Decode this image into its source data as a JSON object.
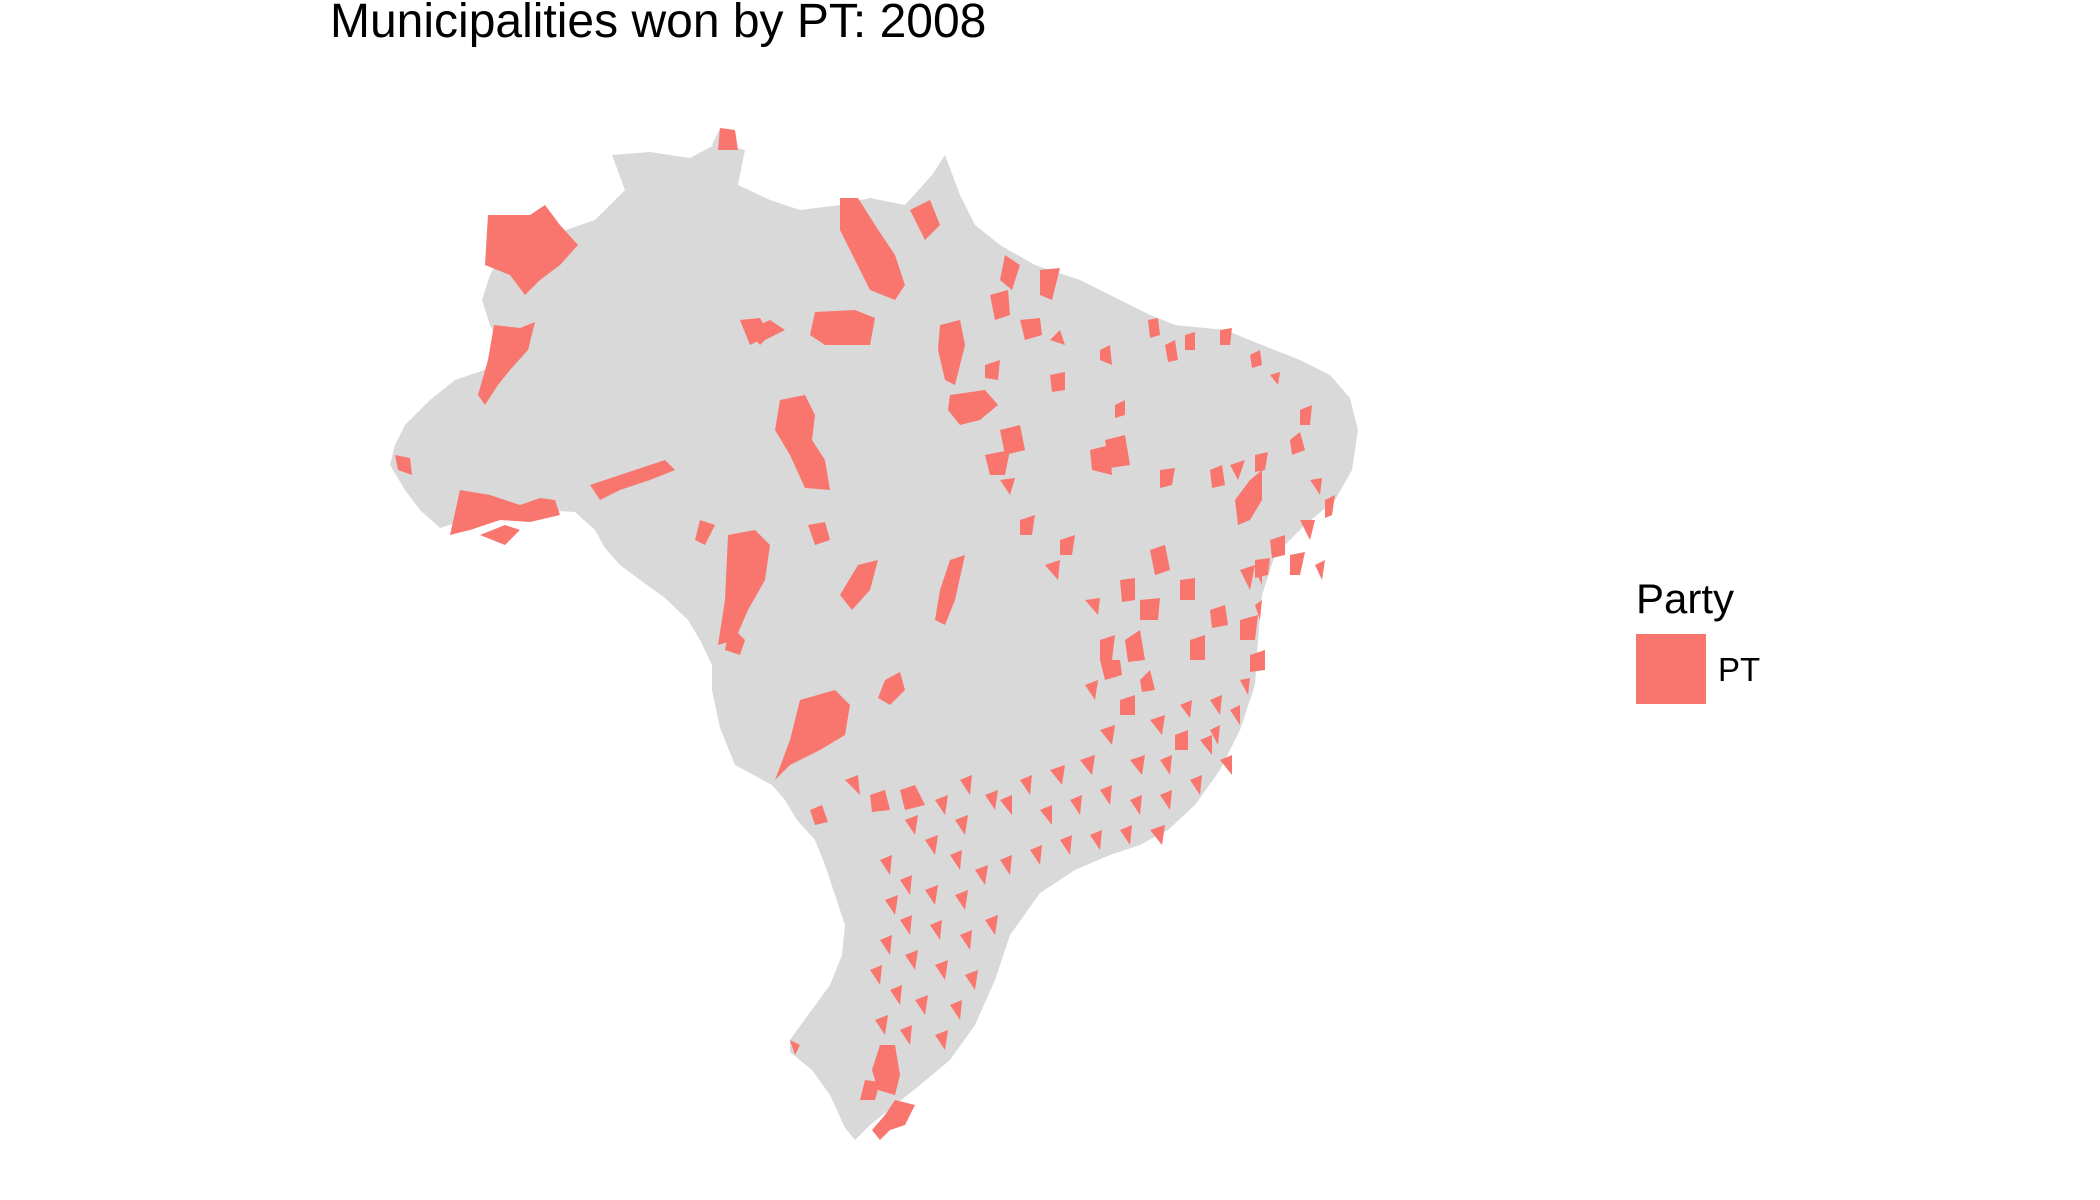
{
  "plot": {
    "title": "Municipalities won by PT: 2008"
  },
  "legend": {
    "title": "Party",
    "items": [
      {
        "label": "PT",
        "color": "#F8766D"
      }
    ]
  },
  "map": {
    "base_color": "#D9D9D9",
    "highlight_color": "#F8766D",
    "region": "Brazil municipalities"
  }
}
